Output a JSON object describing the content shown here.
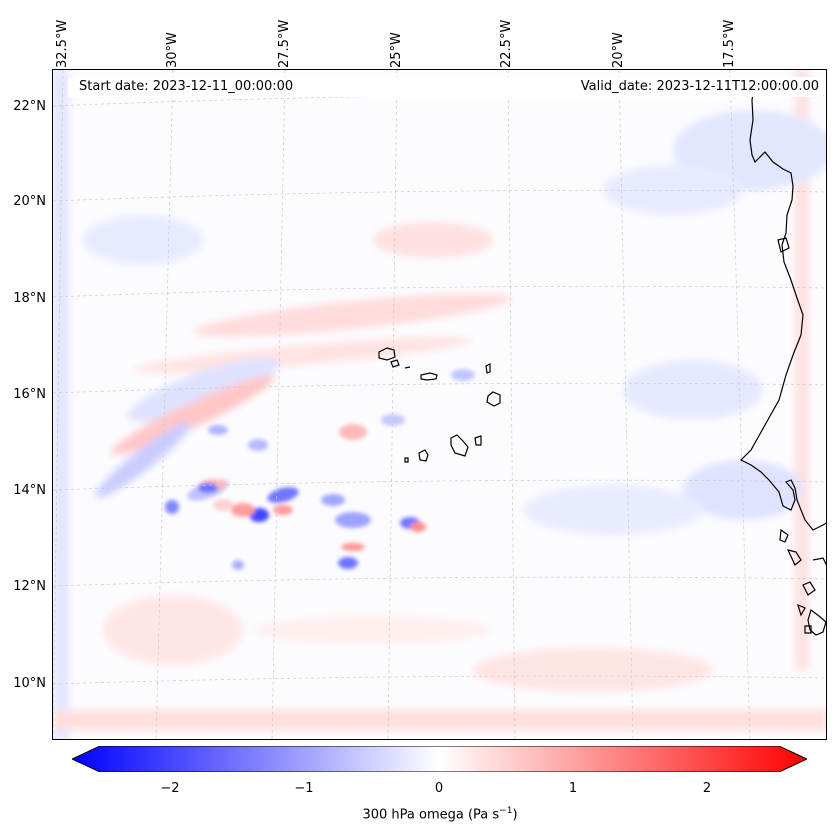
{
  "map": {
    "start_label": "Start date:",
    "start_date": "2023-12-11_00:00:00",
    "valid_label": "Valid_date:",
    "valid_date": "2023-12-11T12:00:00.00"
  },
  "axes": {
    "longitudes": [
      "32.5°W",
      "30°W",
      "27.5°W",
      "25°W",
      "22.5°W",
      "20°W",
      "17.5°W"
    ],
    "latitudes": [
      "22°N",
      "20°N",
      "18°N",
      "16°N",
      "14°N",
      "12°N",
      "10°N"
    ]
  },
  "colorbar": {
    "min": -2.75,
    "max": 2.75,
    "ticks": [
      "−2",
      "−1",
      "0",
      "1",
      "2"
    ],
    "tick_values": [
      -2,
      -1,
      0,
      1,
      2
    ],
    "label": "300 hPa omega (Pa s",
    "label_sup": "−1",
    "label_end": ")",
    "negative_color": "#0000ff",
    "positive_color": "#ff0000"
  }
}
